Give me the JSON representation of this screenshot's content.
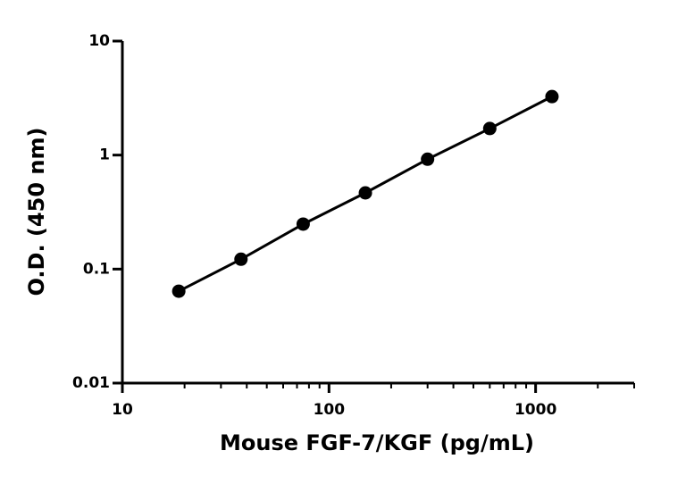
{
  "chart_data": {
    "type": "scatter",
    "x_label": "Mouse FGF-7/KGF (pg/mL)",
    "y_label": "O.D. (450 nm)",
    "x_log": true,
    "y_log": true,
    "xlim": [
      10,
      3000
    ],
    "ylim": [
      0.01,
      10
    ],
    "xticks": [
      10,
      100,
      1000
    ],
    "yticks": [
      0.01,
      0.1,
      1,
      10
    ],
    "fit_line": true,
    "series": [
      {
        "color": "#000000",
        "x": [
          18.75,
          37.5,
          75,
          150,
          300,
          600,
          1200
        ],
        "values": [
          0.064,
          0.122,
          0.248,
          0.466,
          0.92,
          1.71,
          3.26
        ]
      }
    ]
  }
}
